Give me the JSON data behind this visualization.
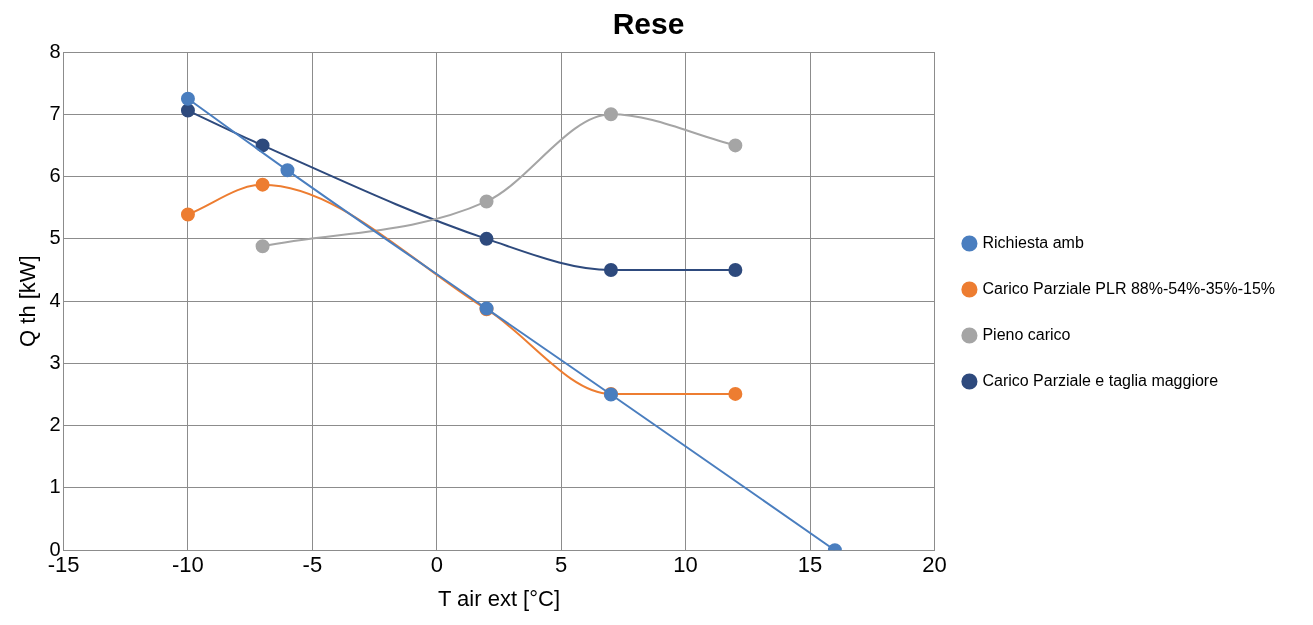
{
  "chart_data": {
    "type": "line",
    "title": "Rese",
    "xlabel": "T air ext [°C]",
    "ylabel": "Q th [kW]",
    "xlim": [
      -15,
      20
    ],
    "xticks": [
      -15,
      -10,
      -5,
      0,
      5,
      10,
      15,
      20
    ],
    "ylim": [
      0,
      8
    ],
    "yticks": [
      0,
      1,
      2,
      3,
      4,
      5,
      6,
      7,
      8
    ],
    "grid": true,
    "legend": "right",
    "marker": "circle",
    "series": [
      {
        "name": "Richiesta amb",
        "color": "#4a7ebf",
        "x": [
          -10,
          -6,
          2,
          7,
          16
        ],
        "values": [
          7.25,
          6.1,
          3.88,
          2.5,
          0
        ]
      },
      {
        "name": "Carico Parziale PLR 88%-54%-35%-15%",
        "color": "#ed7d31",
        "x": [
          -10,
          -7,
          2,
          7,
          12
        ],
        "values": [
          5.39,
          5.87,
          3.87,
          2.51,
          2.51
        ]
      },
      {
        "name": "Pieno carico",
        "color": "#a5a5a5",
        "x": [
          -7,
          2,
          7,
          12
        ],
        "values": [
          4.88,
          5.6,
          7.0,
          6.5
        ]
      },
      {
        "name": "Carico Parziale e taglia maggiore",
        "color": "#2e4a7d",
        "x": [
          -10,
          -7,
          2,
          7,
          12
        ],
        "values": [
          7.06,
          6.5,
          5.0,
          4.5,
          4.5
        ]
      }
    ]
  }
}
